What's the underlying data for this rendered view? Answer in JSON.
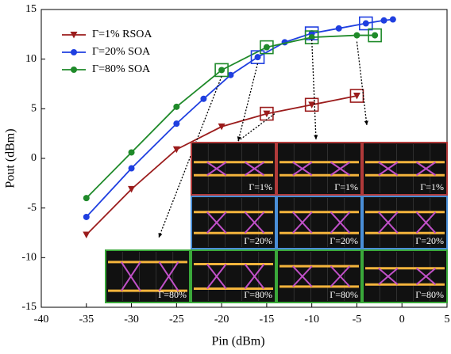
{
  "chart_data": {
    "type": "line",
    "x_label": "Pin (dBm)",
    "y_label": "Pout (dBm)",
    "xlim": [
      -40,
      5
    ],
    "xticks": [
      -40,
      -35,
      -30,
      -25,
      -20,
      -15,
      -10,
      -5,
      0,
      5
    ],
    "ylim": [
      -15,
      15
    ],
    "yticks": [
      -15,
      -10,
      -5,
      0,
      5,
      10,
      15
    ],
    "legend": "top-left",
    "series": [
      {
        "name": "Γ=1%  RSOA",
        "color": "#9b1c1c",
        "marker": "triangle-down",
        "x": [
          -35,
          -30,
          -25,
          -20,
          -15,
          -10,
          -5
        ],
        "values": [
          -7.7,
          -3.1,
          0.9,
          3.2,
          4.5,
          5.4,
          6.3
        ]
      },
      {
        "name": "Γ=20% SOA",
        "color": "#1f3fe0",
        "marker": "circle",
        "x": [
          -35,
          -30,
          -25,
          -22,
          -19,
          -16,
          -13,
          -10,
          -7,
          -4,
          -2,
          -1
        ],
        "values": [
          -5.9,
          -1.0,
          3.5,
          6.0,
          8.4,
          10.2,
          11.7,
          12.6,
          13.1,
          13.6,
          13.9,
          14.0
        ]
      },
      {
        "name": "Γ=80% SOA",
        "color": "#1f8a2a",
        "marker": "circle",
        "x": [
          -35,
          -30,
          -25,
          -20,
          -15,
          -10,
          -5,
          -3
        ],
        "values": [
          -4.0,
          0.6,
          5.2,
          8.9,
          11.2,
          12.2,
          12.4,
          12.4
        ]
      }
    ],
    "eye_diagrams": [
      {
        "border": "#b03a3a",
        "labels": [
          "Γ=1%",
          "Γ=1%",
          "Γ=1%"
        ]
      },
      {
        "border": "#4a8fd8",
        "labels": [
          "Γ=20%",
          "Γ=20%",
          "Γ=20%"
        ]
      },
      {
        "border": "#3aa83a",
        "labels": [
          "Γ=80%",
          "Γ=80%",
          "Γ=80%",
          "Γ=80%"
        ]
      }
    ]
  }
}
